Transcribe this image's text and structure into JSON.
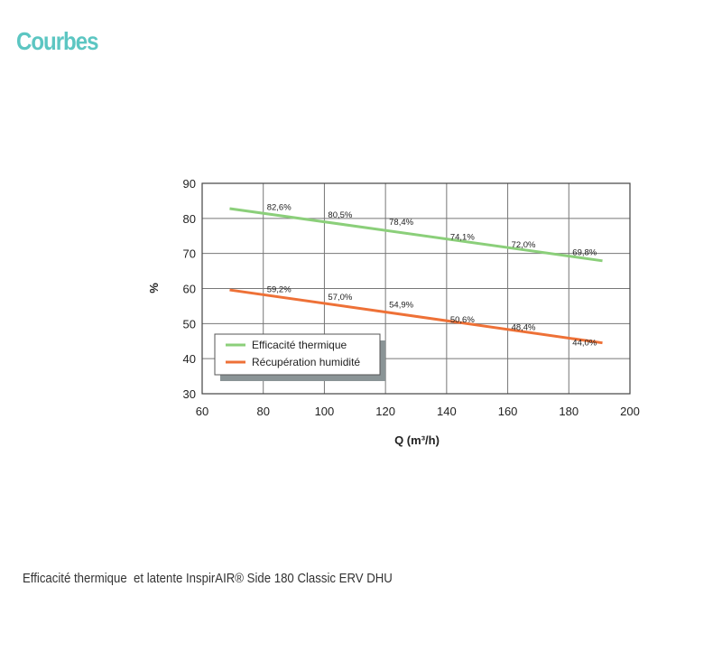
{
  "page": {
    "title": "Courbes",
    "caption": "Efficacité thermique  et latente InspirAIR® Side 180 Classic ERV DHU"
  },
  "colors": {
    "title": "#5cc6c2",
    "thermal": "#8bcf7a",
    "humidity": "#ee7137",
    "grid": "#777777"
  },
  "chart_data": {
    "type": "line",
    "xlabel": "Q (m³/h)",
    "ylabel": "%",
    "xlim": [
      60,
      200
    ],
    "ylim": [
      30,
      90
    ],
    "xticks": [
      60,
      80,
      100,
      120,
      140,
      160,
      180,
      200
    ],
    "yticks": [
      30,
      40,
      50,
      60,
      70,
      80,
      90
    ],
    "grid": true,
    "legend_position": "bottom-left",
    "series": [
      {
        "name": "Efficacité thermique",
        "color": "#8bcf7a",
        "line": [
          [
            69,
            82.8
          ],
          [
            191,
            67.9
          ]
        ],
        "points": [
          {
            "x": 80,
            "y": 82.6,
            "label": "82,6%"
          },
          {
            "x": 100,
            "y": 80.5,
            "label": "80,5%"
          },
          {
            "x": 120,
            "y": 78.4,
            "label": "78,4%"
          },
          {
            "x": 140,
            "y": 74.1,
            "label": "74,1%"
          },
          {
            "x": 160,
            "y": 72.0,
            "label": "72,0%"
          },
          {
            "x": 180,
            "y": 69.8,
            "label": "69,8%"
          }
        ]
      },
      {
        "name": "Récupération humidité",
        "color": "#ee7137",
        "line": [
          [
            69,
            59.6
          ],
          [
            191,
            44.5
          ]
        ],
        "points": [
          {
            "x": 80,
            "y": 59.2,
            "label": "59,2%"
          },
          {
            "x": 100,
            "y": 57.0,
            "label": "57,0%"
          },
          {
            "x": 120,
            "y": 54.9,
            "label": "54,9%"
          },
          {
            "x": 140,
            "y": 50.6,
            "label": "50,6%"
          },
          {
            "x": 160,
            "y": 48.4,
            "label": "48,4%"
          },
          {
            "x": 180,
            "y": 44.0,
            "label": "44,0%"
          }
        ]
      }
    ]
  }
}
